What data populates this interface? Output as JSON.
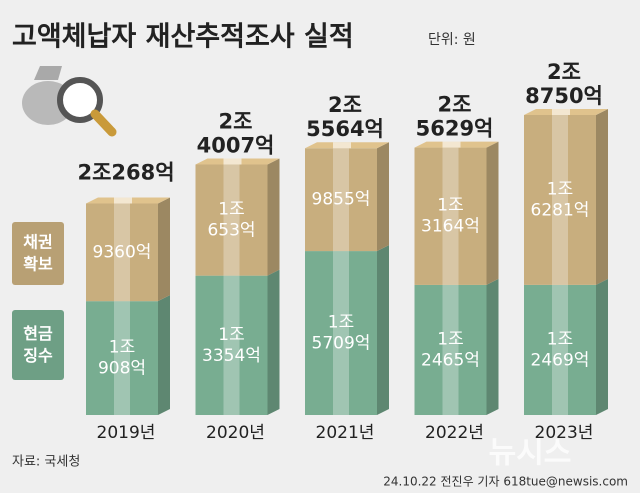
{
  "chart_data": {
    "type": "stacked-bar",
    "title": "고액체납자 재산추적조사 실적",
    "unit": "단위: 원",
    "categories": [
      "2019년",
      "2020년",
      "2021년",
      "2022년",
      "2023년"
    ],
    "series": [
      {
        "name": "현금 징수",
        "color": "#78ad91",
        "values": [
          10908,
          13354,
          15709,
          12465,
          12469
        ],
        "value_labels": [
          "1조 908억",
          "1조 3354억",
          "1조 5709억",
          "1조 2465억",
          "1조 2469억"
        ]
      },
      {
        "name": "채권 확보",
        "color": "#c8ae7e",
        "values": [
          9360,
          10653,
          9855,
          13164,
          16281
        ],
        "value_labels": [
          "9360억",
          "1조 653억",
          "9855억",
          "1조 3164억",
          "1조 6281억"
        ]
      }
    ],
    "totals": [
      20268,
      24007,
      25564,
      25629,
      28750
    ],
    "total_labels": [
      "2조268억",
      "2조 4007억",
      "2조 5564억",
      "2조 5629억",
      "2조 8750억"
    ],
    "source": "자료: 국세청",
    "credit": "24.10.22 전진우 기자 618tue@newsis.com",
    "watermark": "뉴시스"
  }
}
